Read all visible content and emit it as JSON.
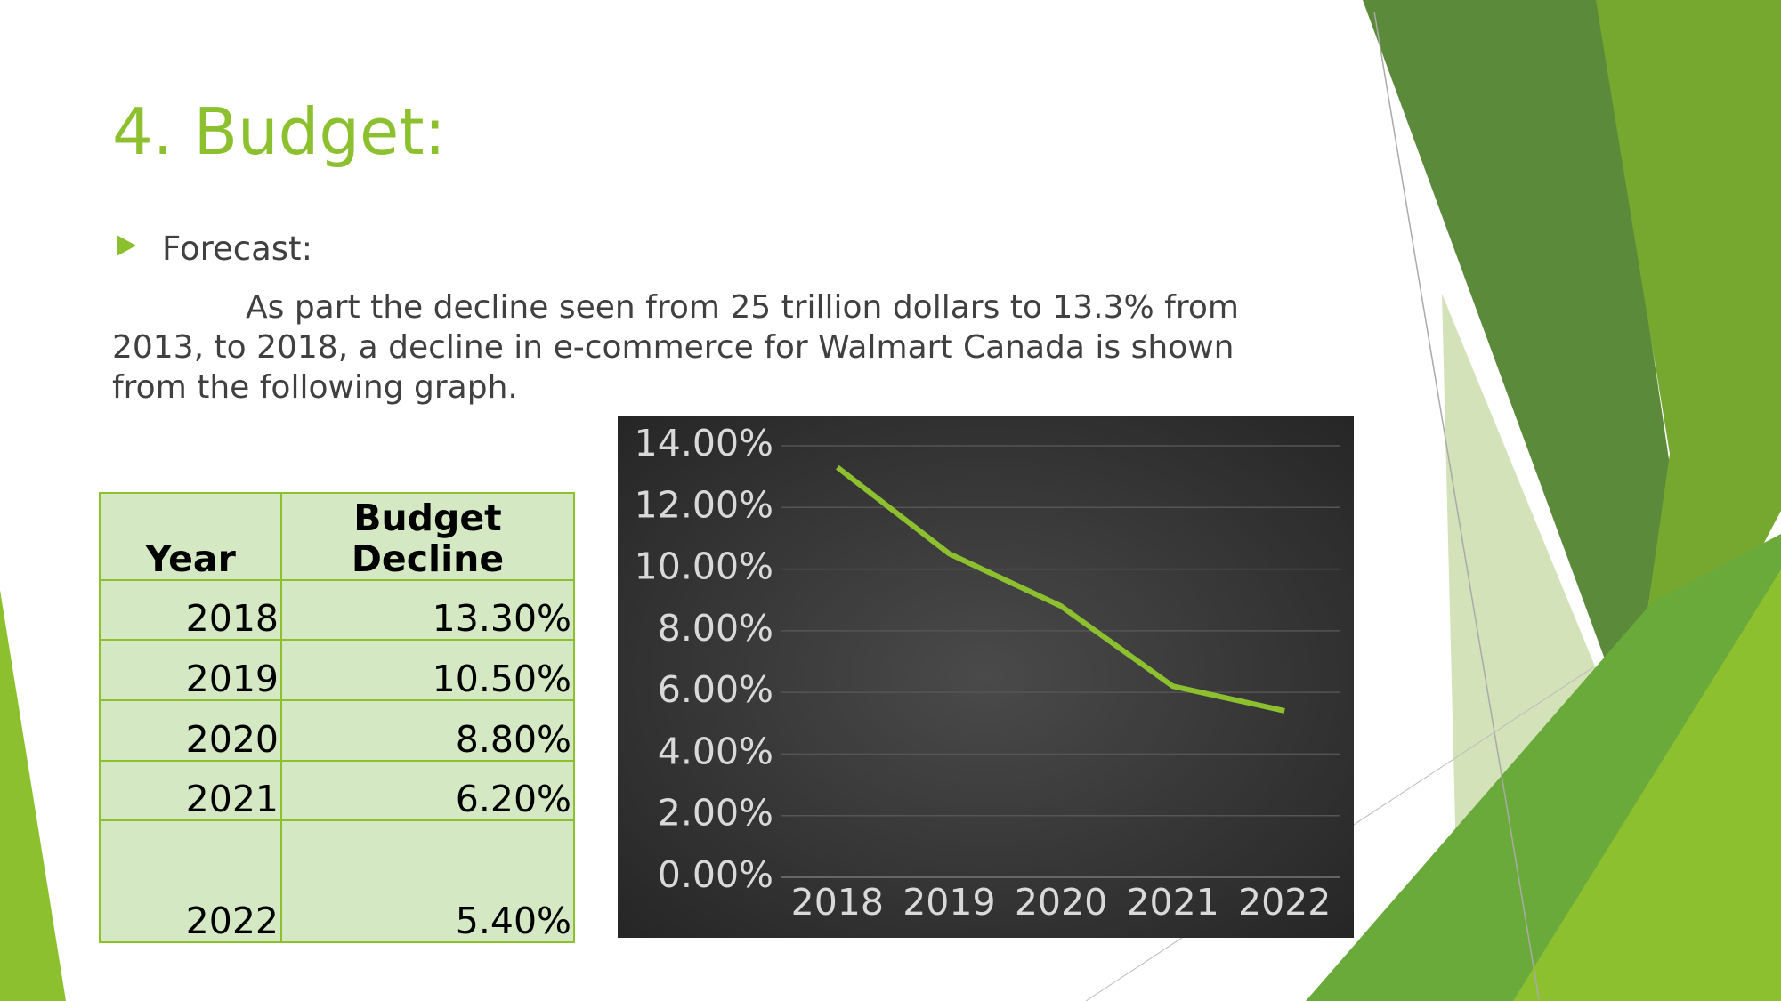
{
  "title": "4. Budget:",
  "bullet": "Forecast:",
  "paragraph": "As part the decline seen from 25 trillion dollars to 13.3% from 2013, to 2018, a decline in e-commerce for Walmart Canada is shown from the following graph.",
  "table": {
    "header": [
      "Year",
      "Budget Decline"
    ],
    "rows": [
      [
        "2018",
        "13.30%"
      ],
      [
        "2019",
        "10.50%"
      ],
      [
        "2020",
        "8.80%"
      ],
      [
        "2021",
        "6.20%"
      ],
      [
        "2022",
        "5.40%"
      ]
    ]
  },
  "chart_data": {
    "type": "line",
    "categories": [
      "2018",
      "2019",
      "2020",
      "2021",
      "2022"
    ],
    "series": [
      {
        "color": "#8dc02e",
        "values": [
          13.3,
          10.5,
          8.8,
          6.2,
          5.4
        ]
      }
    ],
    "ylim": [
      0,
      14
    ],
    "yticks": [
      {
        "value": 0,
        "label": "0.00%"
      },
      {
        "value": 2,
        "label": "2.00%"
      },
      {
        "value": 4,
        "label": "4.00%"
      },
      {
        "value": 6,
        "label": "6.00%"
      },
      {
        "value": 8,
        "label": "8.00%"
      },
      {
        "value": 10,
        "label": "10.00%"
      },
      {
        "value": 12,
        "label": "12.00%"
      },
      {
        "value": 14,
        "label": "14.00%"
      }
    ],
    "grid": true
  }
}
